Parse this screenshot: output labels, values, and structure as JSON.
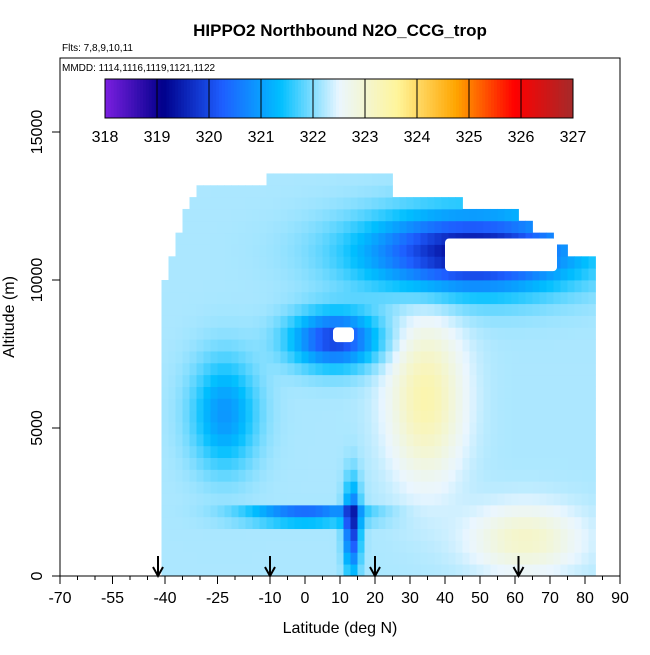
{
  "chart_data": {
    "type": "heatmap",
    "title": "HIPPO2 Northbound N2O_CCG_trop",
    "subtitle_flights": "Flts: 7,8,9,10,11",
    "subtitle_dates": "MMDD: 1114,1116,1119,1121,1122",
    "xlabel": "Latitude (deg N)",
    "ylabel": "Altitude (m)",
    "xlim": [
      -70,
      90
    ],
    "ylim": [
      0,
      17500
    ],
    "x_ticks": [
      -70,
      -55,
      -40,
      -25,
      -10,
      0,
      10,
      20,
      30,
      40,
      50,
      60,
      70,
      80,
      90
    ],
    "y_ticks": [
      0,
      5000,
      10000,
      15000
    ],
    "colorbar": {
      "min": 318,
      "max": 327,
      "ticks": [
        318,
        319,
        320,
        321,
        322,
        323,
        324,
        325,
        326,
        327
      ],
      "colors": [
        "#7b1fe0",
        "#00008b",
        "#1e5eff",
        "#00bfff",
        "#eaf6ff",
        "#fff59a",
        "#ffa500",
        "#ff0000",
        "#a52a2a"
      ]
    },
    "grid": false,
    "arrow_latitudes": [
      -42,
      -10,
      20,
      61
    ],
    "field": {
      "lat_range": [
        -41,
        83
      ],
      "alt_min": 0,
      "alt_max": 13400,
      "background_value": 322.2,
      "zones": [
        {
          "name": "southern-blue-triangle",
          "lat": [
            -33,
            -13
          ],
          "alt": [
            3500,
            7500
          ],
          "value": 320.9
        },
        {
          "name": "upper-blue-band",
          "lat": [
            -5,
            22
          ],
          "alt": [
            7000,
            9000
          ],
          "value": 319.9
        },
        {
          "name": "lower-blue-streak",
          "lat": [
            -18,
            18
          ],
          "alt": [
            1800,
            2300
          ],
          "value": 319.5
        },
        {
          "name": "equator-column",
          "lat": [
            11,
            16
          ],
          "alt": [
            0,
            3200
          ],
          "value": 319.8
        },
        {
          "name": "tropical-yellow-core",
          "lat": [
            23,
            46
          ],
          "alt": [
            3000,
            9000
          ],
          "value": 323.4
        },
        {
          "name": "north-lowlevel-yellow",
          "lat": [
            46,
            80
          ],
          "alt": [
            0,
            2500
          ],
          "value": 323.1
        },
        {
          "name": "northern-upper-blue",
          "lat": [
            15,
            80
          ],
          "alt": [
            9500,
            12400
          ],
          "value": 319.2
        }
      ]
    }
  }
}
